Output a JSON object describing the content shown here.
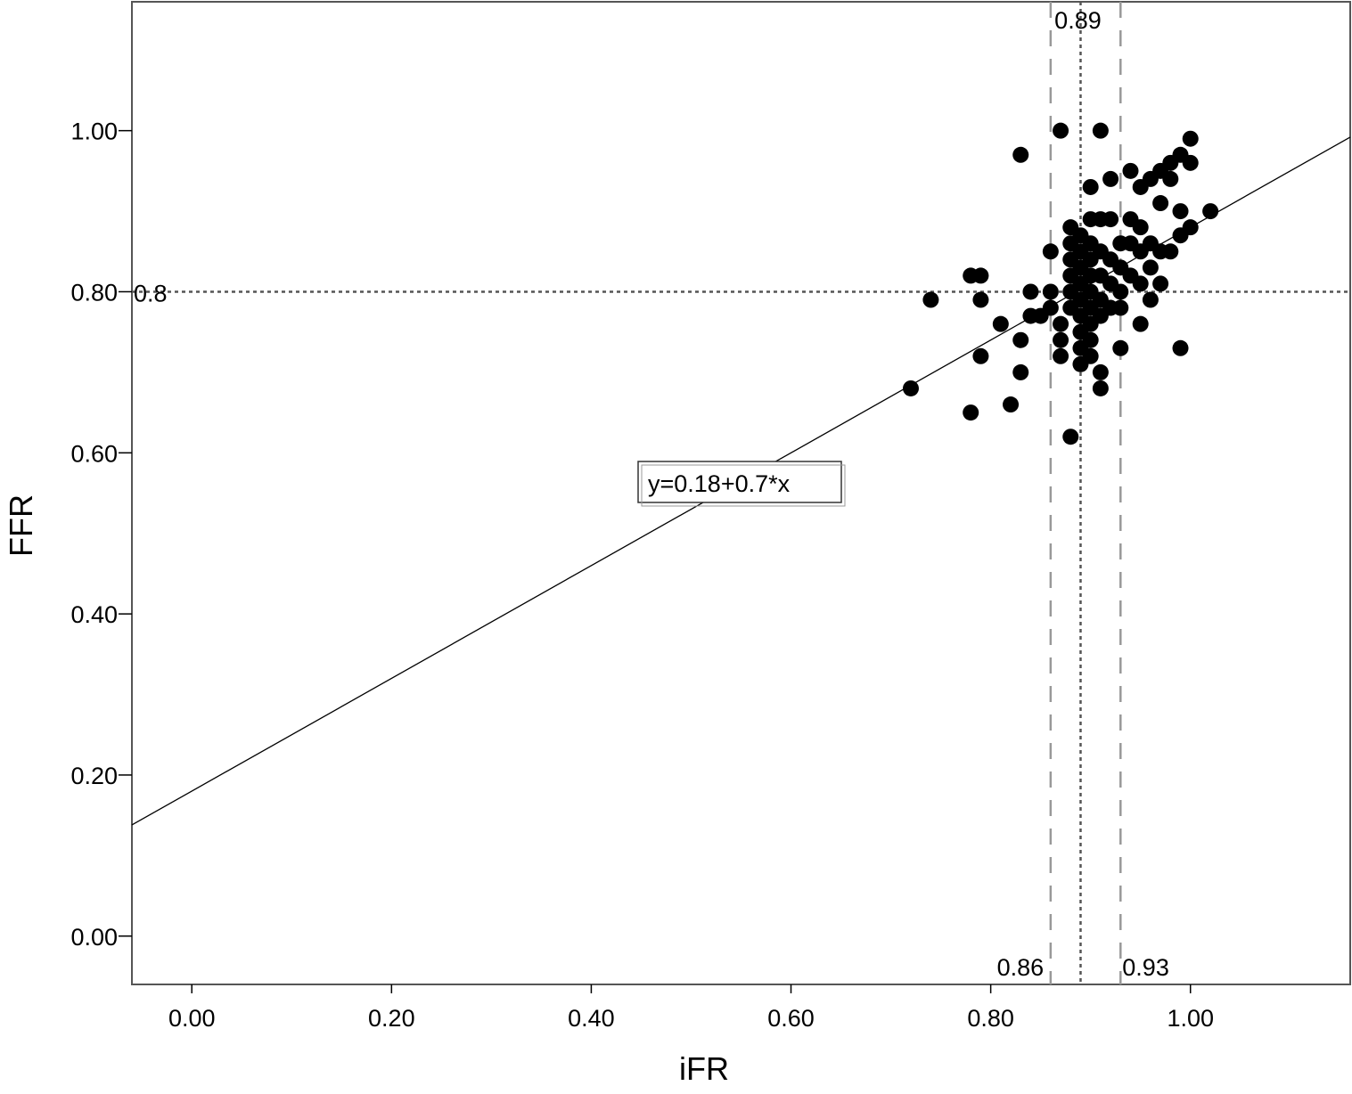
{
  "chart_data": {
    "type": "scatter",
    "xlabel": "iFR",
    "ylabel": "FFR",
    "xlim": [
      -0.06,
      1.16
    ],
    "ylim": [
      -0.06,
      1.16
    ],
    "xticks": [
      "0.00",
      "0.20",
      "0.40",
      "0.60",
      "0.80",
      "1.00"
    ],
    "yticks": [
      "0.00",
      "0.20",
      "0.40",
      "0.60",
      "0.80",
      "1.00"
    ],
    "grid": false,
    "fit_line": {
      "label": "y=0.18+0.7*x",
      "intercept": 0.18,
      "slope": 0.7
    },
    "reference_lines": [
      {
        "axis": "x",
        "value": 0.86,
        "style": "dashed",
        "label": "0.86"
      },
      {
        "axis": "x",
        "value": 0.89,
        "style": "dotted",
        "label": "0.89"
      },
      {
        "axis": "x",
        "value": 0.93,
        "style": "dashed",
        "label": "0.93"
      },
      {
        "axis": "y",
        "value": 0.8,
        "style": "dotted",
        "label": "0.8"
      }
    ],
    "points": [
      [
        0.72,
        0.68
      ],
      [
        0.74,
        0.79
      ],
      [
        0.78,
        0.82
      ],
      [
        0.79,
        0.82
      ],
      [
        0.79,
        0.79
      ],
      [
        0.78,
        0.65
      ],
      [
        0.79,
        0.72
      ],
      [
        0.81,
        0.76
      ],
      [
        0.82,
        0.66
      ],
      [
        0.83,
        0.74
      ],
      [
        0.83,
        0.7
      ],
      [
        0.83,
        0.97
      ],
      [
        0.84,
        0.8
      ],
      [
        0.84,
        0.77
      ],
      [
        0.85,
        0.77
      ],
      [
        0.86,
        0.85
      ],
      [
        0.86,
        0.8
      ],
      [
        0.87,
        1.0
      ],
      [
        0.87,
        0.76
      ],
      [
        0.87,
        0.74
      ],
      [
        0.87,
        0.72
      ],
      [
        0.88,
        0.62
      ],
      [
        0.88,
        0.88
      ],
      [
        0.88,
        0.86
      ],
      [
        0.88,
        0.84
      ],
      [
        0.88,
        0.82
      ],
      [
        0.88,
        0.8
      ],
      [
        0.88,
        0.78
      ],
      [
        0.89,
        0.87
      ],
      [
        0.89,
        0.85
      ],
      [
        0.89,
        0.83
      ],
      [
        0.89,
        0.81
      ],
      [
        0.89,
        0.79
      ],
      [
        0.89,
        0.77
      ],
      [
        0.89,
        0.75
      ],
      [
        0.89,
        0.73
      ],
      [
        0.89,
        0.71
      ],
      [
        0.9,
        0.89
      ],
      [
        0.9,
        0.86
      ],
      [
        0.9,
        0.84
      ],
      [
        0.9,
        0.82
      ],
      [
        0.9,
        0.8
      ],
      [
        0.9,
        0.78
      ],
      [
        0.9,
        0.76
      ],
      [
        0.9,
        0.74
      ],
      [
        0.9,
        0.72
      ],
      [
        0.9,
        0.93
      ],
      [
        0.91,
        1.0
      ],
      [
        0.91,
        0.89
      ],
      [
        0.91,
        0.85
      ],
      [
        0.91,
        0.82
      ],
      [
        0.91,
        0.79
      ],
      [
        0.91,
        0.77
      ],
      [
        0.91,
        0.7
      ],
      [
        0.91,
        0.68
      ],
      [
        0.92,
        0.94
      ],
      [
        0.92,
        0.89
      ],
      [
        0.92,
        0.84
      ],
      [
        0.92,
        0.81
      ],
      [
        0.92,
        0.78
      ],
      [
        0.93,
        0.86
      ],
      [
        0.93,
        0.83
      ],
      [
        0.93,
        0.8
      ],
      [
        0.93,
        0.73
      ],
      [
        0.93,
        0.78
      ],
      [
        0.94,
        0.95
      ],
      [
        0.94,
        0.89
      ],
      [
        0.94,
        0.86
      ],
      [
        0.94,
        0.82
      ],
      [
        0.95,
        0.93
      ],
      [
        0.95,
        0.88
      ],
      [
        0.95,
        0.85
      ],
      [
        0.95,
        0.81
      ],
      [
        0.95,
        0.76
      ],
      [
        0.96,
        0.94
      ],
      [
        0.96,
        0.86
      ],
      [
        0.96,
        0.83
      ],
      [
        0.96,
        0.79
      ],
      [
        0.97,
        0.95
      ],
      [
        0.97,
        0.91
      ],
      [
        0.97,
        0.81
      ],
      [
        0.97,
        0.85
      ],
      [
        0.98,
        0.96
      ],
      [
        0.98,
        0.94
      ],
      [
        0.98,
        0.85
      ],
      [
        0.99,
        0.97
      ],
      [
        0.99,
        0.9
      ],
      [
        0.99,
        0.87
      ],
      [
        0.99,
        0.73
      ],
      [
        1.0,
        0.99
      ],
      [
        1.0,
        0.96
      ],
      [
        1.0,
        0.88
      ],
      [
        1.02,
        0.9
      ],
      [
        0.86,
        0.78
      ]
    ]
  }
}
